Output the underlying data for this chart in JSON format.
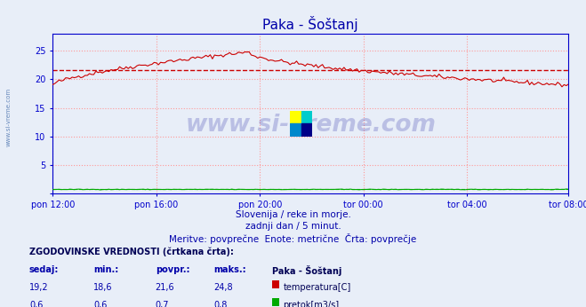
{
  "title": "Paka - Šoštanj",
  "title_color": "#0000aa",
  "bg_color": "#e8eef8",
  "plot_bg_color": "#e8eef8",
  "grid_color": "#ff9999",
  "x_tick_labels": [
    "pon 12:00",
    "pon 16:00",
    "pon 20:00",
    "tor 00:00",
    "tor 04:00",
    "tor 08:00"
  ],
  "x_tick_positions": [
    0,
    48,
    96,
    144,
    192,
    239
  ],
  "ylabel_color": "#0000aa",
  "ylim": [
    0,
    28
  ],
  "yticks": [
    0,
    5,
    10,
    15,
    20,
    25
  ],
  "yticklabels": [
    "",
    "5",
    "10",
    "15",
    "20",
    "25"
  ],
  "n_points": 240,
  "temp_color": "#cc0000",
  "flow_color": "#00aa00",
  "watermark_text": "www.si-vreme.com",
  "watermark_color": "#3333aa",
  "watermark_alpha": 0.25,
  "subtitle1": "Slovenija / reke in morje.",
  "subtitle2": "zadnji dan / 5 minut.",
  "subtitle3": "Meritve: povprečne  Enote: metrične  Črta: povprečje",
  "subtitle_color": "#0000aa",
  "table_title": "ZGODOVINSKE VREDNOSTI (črtkana črta):",
  "table_headers": [
    "sedaj:",
    "min.:",
    "povpr.:",
    "maks.:"
  ],
  "temp_row": [
    "19,2",
    "18,6",
    "21,6",
    "24,8"
  ],
  "flow_row": [
    "0,6",
    "0,6",
    "0,7",
    "0,8"
  ],
  "station_label": "Paka - Šoštanj",
  "temp_label": "temperatura[C]",
  "flow_label": "pretok[m3/s]",
  "temp_avg_value": 21.6,
  "flow_avg_value": 0.7,
  "spine_color": "#0000cc",
  "logo_colors": [
    "#ffff00",
    "#00cccc",
    "#0088cc",
    "#000088"
  ]
}
